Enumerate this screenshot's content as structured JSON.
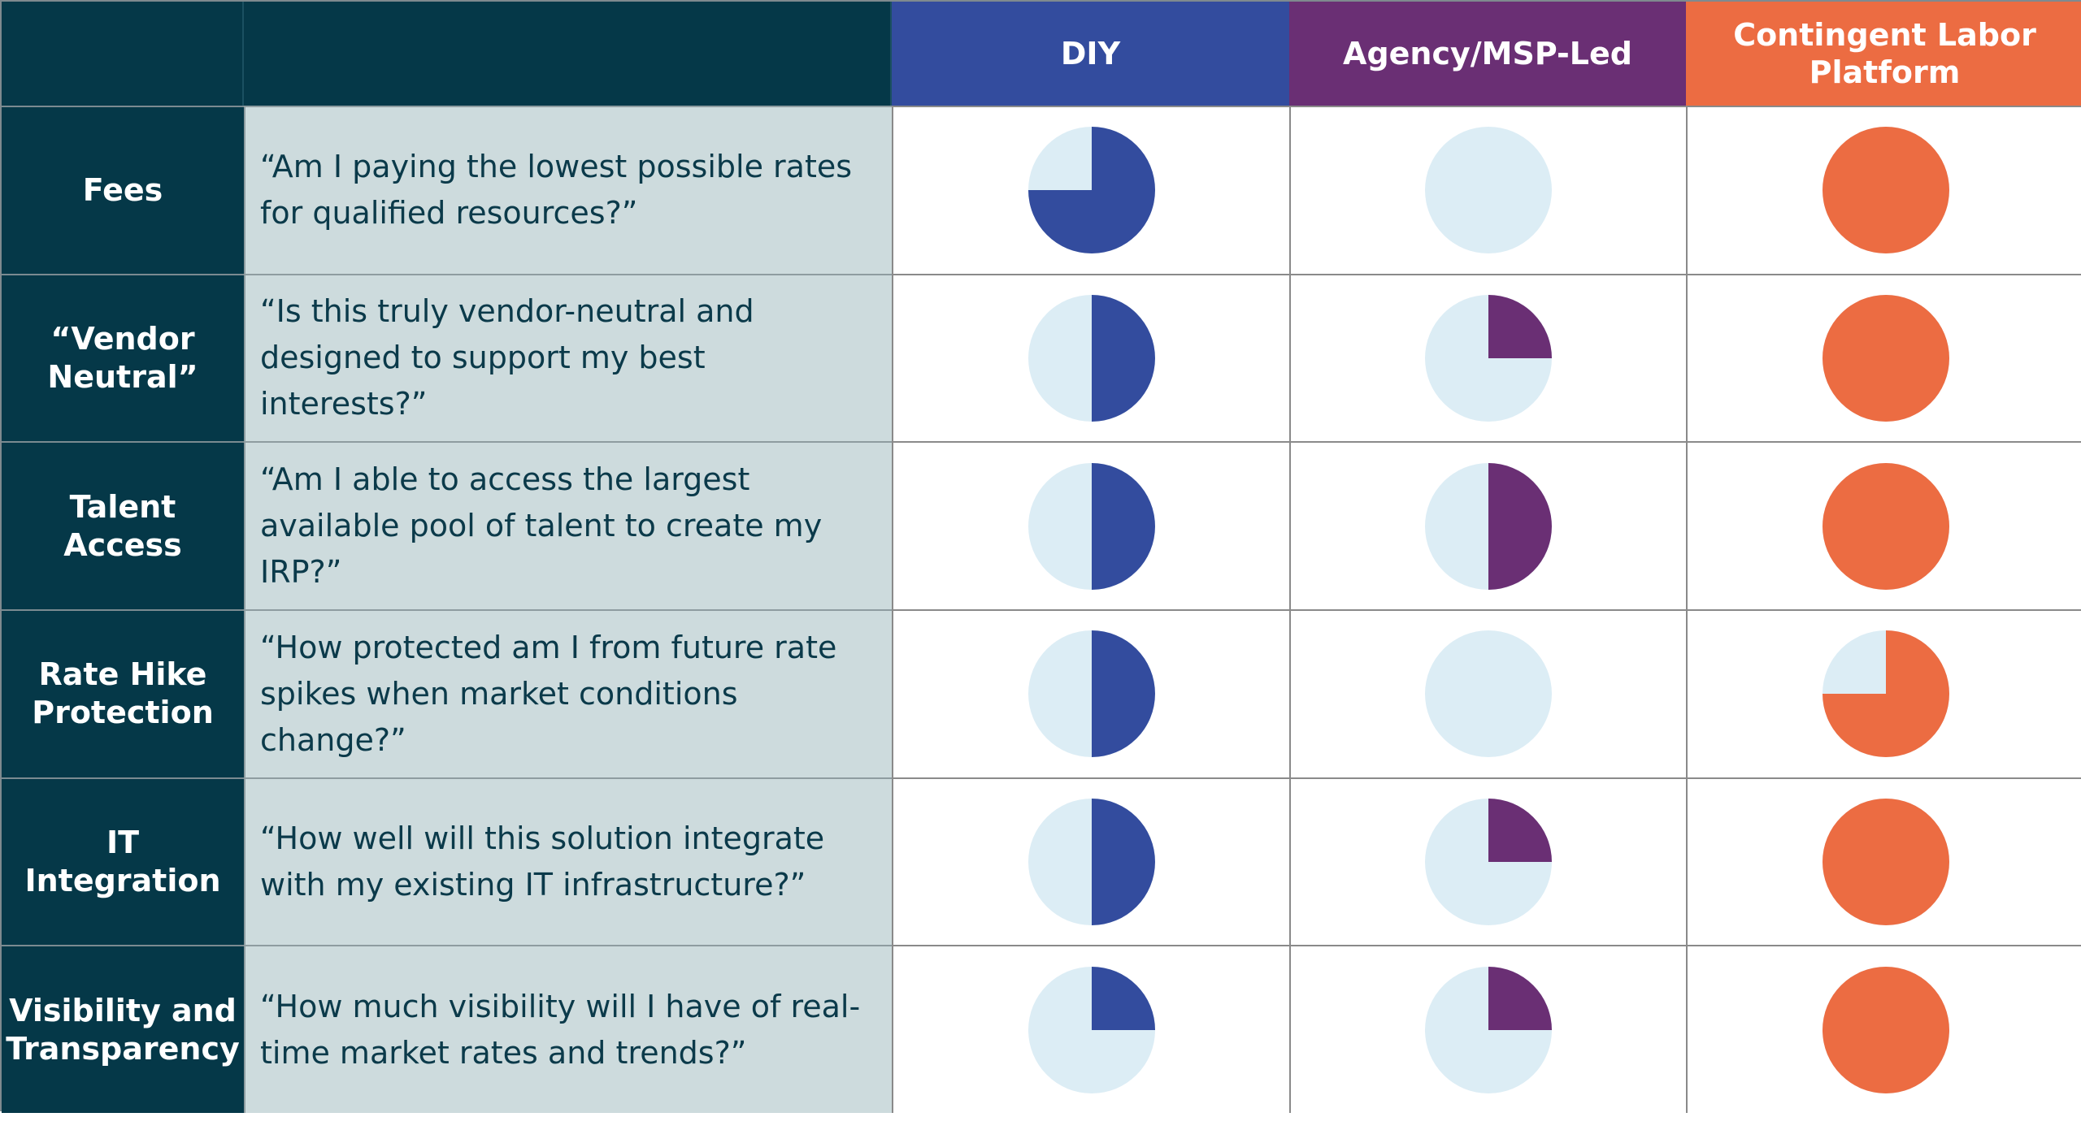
{
  "columns": [
    {
      "label": "DIY",
      "color": "#334c9e"
    },
    {
      "label": "Agency/MSP-Led",
      "color": "#6a2f74"
    },
    {
      "label": "Contingent Labor Platform",
      "color": "#ec6c42"
    }
  ],
  "empty_color": "#dcedf5",
  "rows": [
    {
      "label": "Fees",
      "question": "“Am I paying the lowest possible rates for qualified resources?”",
      "scores": [
        0.75,
        0,
        1
      ]
    },
    {
      "label": "“Vendor Neutral”",
      "question": "“Is this truly vendor-neutral and designed to support my best interests?”",
      "scores": [
        0.5,
        0.25,
        1
      ]
    },
    {
      "label": "Talent Access",
      "question": "“Am I able to access the largest available pool of talent to create my IRP?”",
      "scores": [
        0.5,
        0.5,
        1
      ]
    },
    {
      "label": "Rate Hike Protection",
      "question": "“How protected am I from future rate spikes when market conditions change?”",
      "scores": [
        0.5,
        0,
        0.75
      ]
    },
    {
      "label": "IT Integration",
      "question": "“How well will this solution integrate with my existing IT infrastructure?”",
      "scores": [
        0.5,
        0.25,
        1
      ]
    },
    {
      "label": "Visibility and Transparency",
      "question": "“How much visibility will I have of real-time market rates and trends?”",
      "scores": [
        0.25,
        0.25,
        1
      ]
    }
  ]
}
